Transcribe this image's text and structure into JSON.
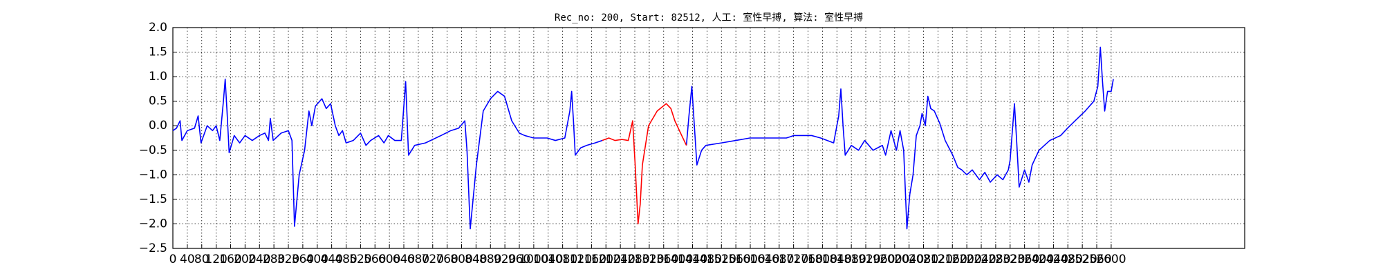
{
  "chart_data": {
    "type": "line",
    "title": "Rec_no: 200, Start: 82512, 人工: 室性早搏, 算法: 室性早搏",
    "xlim": [
      0,
      2970
    ],
    "ylim": [
      -2.5,
      2.0
    ],
    "xticks": [
      0,
      40,
      80,
      120,
      160,
      200,
      240,
      280,
      320,
      360,
      400,
      440,
      480,
      520,
      560,
      600,
      640,
      680,
      720,
      760,
      800,
      840,
      880,
      920,
      960,
      1000,
      1040,
      1080,
      1120,
      1160,
      1200,
      1240,
      1280,
      1320,
      1360,
      1400,
      1440,
      1480,
      1520,
      1560,
      1600,
      1640,
      1680,
      1720,
      1760,
      1800,
      1840,
      1880,
      1920,
      1960,
      2000,
      2040,
      2080,
      2120,
      2160,
      2200,
      2240,
      2280,
      2320,
      2360,
      2400,
      2440,
      2480,
      2520,
      2560,
      2600
    ],
    "yticks": [
      {
        "value": -2.5,
        "label": "−2.5"
      },
      {
        "value": -2,
        "label": "−2.0"
      },
      {
        "value": -1.5,
        "label": "−1.5"
      },
      {
        "value": -1,
        "label": "−1.0"
      },
      {
        "value": -0.5,
        "label": "−0.5"
      },
      {
        "value": 0,
        "label": "0.0"
      },
      {
        "value": 0.5,
        "label": "0.5"
      },
      {
        "value": 1,
        "label": "1.0"
      },
      {
        "value": 1.5,
        "label": "1.5"
      },
      {
        "value": 2,
        "label": "2.0"
      }
    ],
    "grid": true,
    "series": [
      {
        "color": "#0000ff",
        "x": [
          0,
          10,
          20,
          25,
          40,
          60,
          70,
          78,
          95,
          110,
          120,
          130,
          140,
          145,
          150,
          156,
          170,
          185,
          200,
          220,
          240,
          255,
          265,
          270,
          278,
          300,
          320,
          330,
          337,
          350,
          365,
          377,
          385,
          395,
          413,
          425,
          437,
          450,
          460,
          470,
          480,
          500,
          520,
          535,
          548,
          570,
          585,
          597,
          615,
          633,
          645,
          653,
          670,
          700,
          743,
          770,
          792,
          809,
          815,
          824,
          841,
          860,
          880,
          900,
          919,
          939,
          960,
          975,
          1000,
          1037,
          1060,
          1086,
          1100,
          1105,
          1110,
          1115,
          1130,
          1147,
          1170,
          1190,
          1300,
          1423,
          1430,
          1438,
          1445,
          1452,
          1465,
          1477,
          1520,
          1560,
          1599,
          1650,
          1700,
          1721,
          1770,
          1795,
          1831,
          1845,
          1851,
          1857,
          1863,
          1880,
          1900,
          1917,
          1940,
          1966,
          1975,
          1990,
          2005,
          2015,
          2025,
          2034,
          2042,
          2051,
          2060,
          2070,
          2076,
          2085,
          2092,
          2100,
          2110,
          2125,
          2140,
          2161,
          2175,
          2186,
          2200,
          2215,
          2235,
          2250,
          2265,
          2284,
          2300,
          2315,
          2320,
          2332,
          2338,
          2345,
          2360,
          2372,
          2381,
          2400,
          2430,
          2460,
          2479,
          2500,
          2528,
          2552,
          2563,
          2570,
          2576,
          2582,
          2590,
          2600,
          2606
        ],
        "values": [
          -0.1,
          -0.05,
          0.1,
          -0.3,
          -0.1,
          -0.05,
          0.2,
          -0.35,
          0.0,
          -0.1,
          0.0,
          -0.3,
          0.5,
          0.95,
          0.3,
          -0.55,
          -0.2,
          -0.35,
          -0.2,
          -0.3,
          -0.2,
          -0.15,
          -0.3,
          0.15,
          -0.3,
          -0.15,
          -0.1,
          -0.3,
          -2.05,
          -1.0,
          -0.5,
          0.3,
          0.0,
          0.4,
          0.55,
          0.35,
          0.45,
          0.0,
          -0.2,
          -0.1,
          -0.35,
          -0.3,
          -0.15,
          -0.4,
          -0.3,
          -0.2,
          -0.35,
          -0.2,
          -0.3,
          -0.3,
          0.9,
          -0.6,
          -0.4,
          -0.35,
          -0.2,
          -0.1,
          -0.05,
          0.1,
          -0.5,
          -2.1,
          -0.8,
          0.3,
          0.55,
          0.7,
          0.6,
          0.1,
          -0.15,
          -0.2,
          -0.25,
          -0.25,
          -0.3,
          -0.25,
          0.3,
          0.7,
          0.1,
          -0.6,
          -0.45,
          -0.4,
          -0.35,
          -0.3,
          null,
          -0.4,
          0.2,
          0.8,
          0.0,
          -0.8,
          -0.5,
          -0.4,
          -0.35,
          -0.3,
          -0.25,
          -0.25,
          -0.25,
          -0.2,
          -0.2,
          -0.25,
          -0.35,
          0.2,
          0.75,
          0.0,
          -0.6,
          -0.4,
          -0.5,
          -0.3,
          -0.5,
          -0.4,
          -0.6,
          -0.1,
          -0.5,
          -0.1,
          -0.5,
          -2.1,
          -1.4,
          -1.0,
          -0.2,
          0.0,
          0.25,
          0.0,
          0.6,
          0.35,
          0.3,
          0.05,
          -0.3,
          -0.6,
          -0.85,
          -0.9,
          -1.0,
          -0.9,
          -1.1,
          -0.95,
          -1.15,
          -1.0,
          -1.1,
          -0.9,
          -0.7,
          0.45,
          -0.3,
          -1.25,
          -0.9,
          -1.15,
          -0.8,
          -0.5,
          -0.3,
          -0.2,
          -0.05,
          0.1,
          0.3,
          0.5,
          0.8,
          1.6,
          0.9,
          0.3,
          0.7,
          0.7,
          0.95
        ]
      },
      {
        "color": "#ff0000",
        "x": [
          1190,
          1208,
          1225,
          1244,
          1262,
          1274,
          1281,
          1289,
          1295,
          1301,
          1318,
          1342,
          1367,
          1380,
          1391,
          1410,
          1423
        ],
        "values": [
          -0.3,
          -0.25,
          -0.3,
          -0.28,
          -0.3,
          0.1,
          -0.8,
          -2.0,
          -1.6,
          -0.8,
          0.0,
          0.3,
          0.45,
          0.35,
          0.1,
          -0.2,
          -0.4
        ]
      }
    ]
  }
}
